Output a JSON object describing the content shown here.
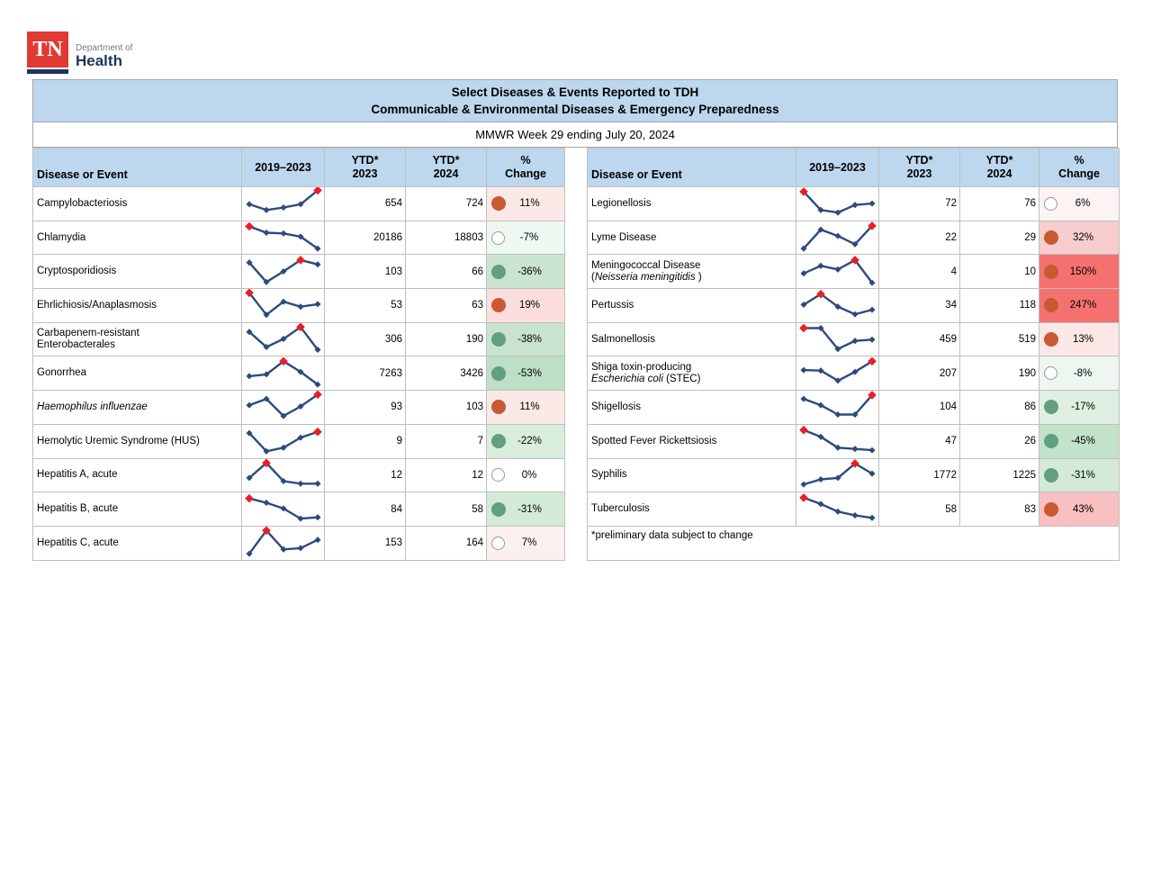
{
  "logo": {
    "mark": "TN",
    "department": "Department of",
    "health": "Health"
  },
  "header": {
    "title_line1": "Select Diseases & Events Reported to TDH",
    "title_line2": "Communicable & Environmental Diseases & Emergency Preparedness",
    "week": "MMWR Week 29 ending July 20, 2024"
  },
  "columns": [
    {
      "label": [
        "Disease or Event"
      ]
    },
    {
      "label": [
        "2019–2023"
      ]
    },
    {
      "label": [
        "YTD*",
        "2023"
      ]
    },
    {
      "label": [
        "YTD*",
        "2024"
      ]
    },
    {
      "label": [
        "%",
        "Change"
      ]
    }
  ],
  "footnote": "*preliminary data subject to change",
  "style": {
    "band_blue": "#BDD7EE",
    "spark_line": "#2B4B7E",
    "spark_marker_red": "#EE1C25",
    "dot_up": "#C85A32",
    "dot_down": "#629E81",
    "strong_red_bg": "#F4716F"
  },
  "tables": [
    {
      "has_footnote": false,
      "rows": [
        {
          "name": [
            [
              {
                "t": "Campylobacteriosis",
                "i": false
              }
            ]
          ],
          "spark": {
            "v": [
              0.45,
              0.22,
              0.32,
              0.45,
              1.0
            ],
            "red": 4
          },
          "y23": "654",
          "y24": "724",
          "pct": "11%",
          "dot": "up",
          "bg": "#FBE9E8"
        },
        {
          "name": [
            [
              {
                "t": "Chlamydia",
                "i": false
              }
            ]
          ],
          "spark": {
            "v": [
              0.93,
              0.68,
              0.65,
              0.52,
              0.05
            ],
            "red": 0
          },
          "y23": "20186",
          "y24": "18803",
          "pct": "-7%",
          "dot": "flat",
          "bg": "#EFF7F1"
        },
        {
          "name": [
            [
              {
                "t": "Cryptosporidiosis",
                "i": false
              }
            ]
          ],
          "spark": {
            "v": [
              0.85,
              0.08,
              0.5,
              0.95,
              0.78
            ],
            "red": 3
          },
          "y23": "103",
          "y24": "66",
          "pct": "-36%",
          "dot": "down",
          "bg": "#C9E5CF"
        },
        {
          "name": [
            [
              {
                "t": "Ehrlichiosis/Anaplasmosis",
                "i": false
              }
            ]
          ],
          "spark": {
            "v": [
              0.97,
              0.1,
              0.62,
              0.42,
              0.52
            ],
            "red": 0
          },
          "y23": "53",
          "y24": "63",
          "pct": "19%",
          "dot": "up",
          "bg": "#FBDEDD"
        },
        {
          "name": [
            [
              {
                "t": "Carbapenem-resistant",
                "i": false
              }
            ],
            [
              {
                "t": "Enterobacterales",
                "i": false
              }
            ]
          ],
          "spark": {
            "v": [
              0.78,
              0.18,
              0.5,
              0.97,
              0.07
            ],
            "red": 3
          },
          "y23": "306",
          "y24": "190",
          "pct": "-38%",
          "dot": "down",
          "bg": "#C8E4CE"
        },
        {
          "name": [
            [
              {
                "t": "Gonorrhea",
                "i": false
              }
            ]
          ],
          "spark": {
            "v": [
              0.38,
              0.45,
              0.97,
              0.55,
              0.05
            ],
            "red": 2
          },
          "y23": "7263",
          "y24": "3426",
          "pct": "-53%",
          "dot": "down",
          "bg": "#BDDFC5"
        },
        {
          "name": [
            [
              {
                "t": "Haemophilus influenzae",
                "i": true
              }
            ]
          ],
          "spark": {
            "v": [
              0.55,
              0.8,
              0.12,
              0.5,
              0.97
            ],
            "red": 4
          },
          "y23": "93",
          "y24": "103",
          "pct": "11%",
          "dot": "up",
          "bg": "#FBE9E8"
        },
        {
          "name": [
            [
              {
                "t": "Hemolytic Uremic Syndrome (HUS)",
                "i": false
              }
            ]
          ],
          "spark": {
            "v": [
              0.8,
              0.08,
              0.22,
              0.62,
              0.85
            ],
            "red": 4
          },
          "y23": "9",
          "y24": "7",
          "pct": "-22%",
          "dot": "down",
          "bg": "#D8EDDD"
        },
        {
          "name": [
            [
              {
                "t": "Hepatitis A, acute",
                "i": false
              }
            ]
          ],
          "spark": {
            "v": [
              0.38,
              0.97,
              0.25,
              0.15,
              0.15
            ],
            "red": 1
          },
          "y23": "12",
          "y24": "12",
          "pct": "0%",
          "dot": "flat",
          "bg": "#FFFFFF"
        },
        {
          "name": [
            [
              {
                "t": "Hepatitis B, acute",
                "i": false
              }
            ]
          ],
          "spark": {
            "v": [
              0.92,
              0.75,
              0.52,
              0.12,
              0.17
            ],
            "red": 0
          },
          "y23": "84",
          "y24": "58",
          "pct": "-31%",
          "dot": "down",
          "bg": "#D4EAD9"
        },
        {
          "name": [
            [
              {
                "t": "Hepatitis C, acute",
                "i": false
              }
            ]
          ],
          "spark": {
            "v": [
              0.05,
              0.97,
              0.22,
              0.27,
              0.6
            ],
            "red": 1
          },
          "y23": "153",
          "y24": "164",
          "pct": "7%",
          "dot": "flat",
          "bg": "#FCF0EF"
        }
      ]
    },
    {
      "has_footnote": true,
      "rows": [
        {
          "name": [
            [
              {
                "t": "Legionellosis",
                "i": false
              }
            ]
          ],
          "spark": {
            "v": [
              0.95,
              0.22,
              0.12,
              0.42,
              0.48
            ],
            "red": 0
          },
          "y23": "72",
          "y24": "76",
          "pct": "6%",
          "dot": "flat",
          "bg": "#FCF3F3"
        },
        {
          "name": [
            [
              {
                "t": "Lyme Disease",
                "i": false
              }
            ]
          ],
          "spark": {
            "v": [
              0.05,
              0.8,
              0.55,
              0.22,
              0.95
            ],
            "red": 4
          },
          "y23": "22",
          "y24": "29",
          "pct": "32%",
          "dot": "up",
          "bg": "#F8CDCD"
        },
        {
          "name": [
            [
              {
                "t": "Meningococcal Disease",
                "i": false
              }
            ],
            [
              {
                "t": "(",
                "i": false
              },
              {
                "t": "Neisseria meningitidis",
                "i": true
              },
              {
                "t": " )",
                "i": false
              }
            ]
          ],
          "spark": {
            "v": [
              0.42,
              0.72,
              0.58,
              0.95,
              0.05
            ],
            "red": 3
          },
          "y23": "4",
          "y24": "10",
          "pct": "150%",
          "dot": "up",
          "bg": "#F4716F"
        },
        {
          "name": [
            [
              {
                "t": "Pertussis",
                "i": false
              }
            ]
          ],
          "spark": {
            "v": [
              0.5,
              0.92,
              0.42,
              0.12,
              0.3
            ],
            "red": 1
          },
          "y23": "34",
          "y24": "118",
          "pct": "247%",
          "dot": "up",
          "bg": "#F4716F"
        },
        {
          "name": [
            [
              {
                "t": "Salmonellosis",
                "i": false
              }
            ]
          ],
          "spark": {
            "v": [
              0.93,
              0.93,
              0.1,
              0.42,
              0.47
            ],
            "red": 0
          },
          "y23": "459",
          "y24": "519",
          "pct": "13%",
          "dot": "up",
          "bg": "#FBE7E6"
        },
        {
          "name": [
            [
              {
                "t": "Shiga toxin-producing",
                "i": false
              }
            ],
            [
              {
                "t": "Escherichia coli",
                "i": true
              },
              {
                "t": " (STEC)",
                "i": false
              }
            ]
          ],
          "spark": {
            "v": [
              0.62,
              0.6,
              0.2,
              0.55,
              0.97
            ],
            "red": 4
          },
          "y23": "207",
          "y24": "190",
          "pct": "-8%",
          "dot": "flat",
          "bg": "#EEF6F0"
        },
        {
          "name": [
            [
              {
                "t": "Shigellosis",
                "i": false
              }
            ]
          ],
          "spark": {
            "v": [
              0.8,
              0.55,
              0.18,
              0.18,
              0.95
            ],
            "red": 4
          },
          "y23": "104",
          "y24": "86",
          "pct": "-17%",
          "dot": "down",
          "bg": "#DFF0E3"
        },
        {
          "name": [
            [
              {
                "t": "Spotted Fever Rickettsiosis",
                "i": false
              }
            ]
          ],
          "spark": {
            "v": [
              0.92,
              0.65,
              0.22,
              0.17,
              0.12
            ],
            "red": 0
          },
          "y23": "47",
          "y24": "26",
          "pct": "-45%",
          "dot": "down",
          "bg": "#C3E2CA"
        },
        {
          "name": [
            [
              {
                "t": "Syphilis",
                "i": false
              }
            ]
          ],
          "spark": {
            "v": [
              0.12,
              0.32,
              0.38,
              0.95,
              0.55
            ],
            "red": 3
          },
          "y23": "1772",
          "y24": "1225",
          "pct": "-31%",
          "dot": "down",
          "bg": "#D4EAD9"
        },
        {
          "name": [
            [
              {
                "t": "Tuberculosis",
                "i": false
              }
            ]
          ],
          "spark": {
            "v": [
              0.95,
              0.7,
              0.4,
              0.25,
              0.15
            ],
            "red": 0
          },
          "y23": "58",
          "y24": "83",
          "pct": "43%",
          "dot": "up",
          "bg": "#F8C0C0"
        }
      ]
    }
  ]
}
